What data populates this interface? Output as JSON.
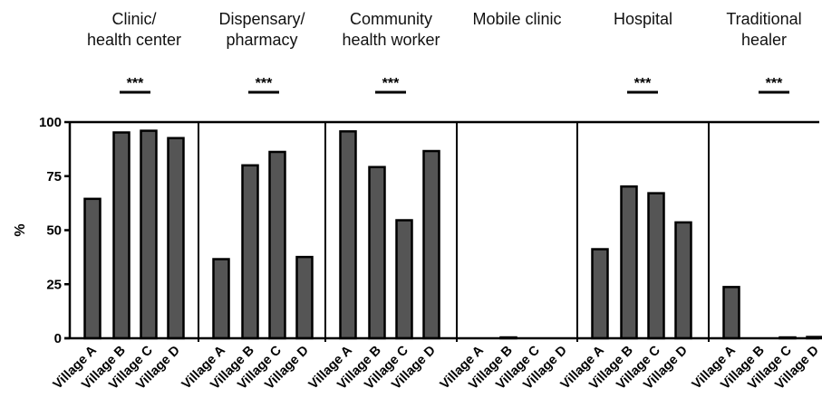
{
  "chart_data": {
    "type": "bar",
    "ylabel": "%",
    "ylim": [
      0,
      100
    ],
    "yticks": [
      "0",
      "25",
      "50",
      "75",
      "100"
    ],
    "categories": [
      "Village A",
      "Village B",
      "Village C",
      "Village D"
    ],
    "bar_color": "#555555",
    "significance_label": "***",
    "facets": [
      {
        "title": [
          "Clinic/",
          "health center"
        ],
        "values": [
          64.5,
          95.2,
          96,
          92.6
        ],
        "significant": true
      },
      {
        "title": [
          "Dispensary/",
          "pharmacy"
        ],
        "values": [
          36.6,
          80,
          86.2,
          37.6
        ],
        "significant": true
      },
      {
        "title": [
          "Community",
          "health worker"
        ],
        "values": [
          95.7,
          79.2,
          54.6,
          86.6
        ],
        "significant": true
      },
      {
        "title": [
          "Mobile clinic"
        ],
        "values": [
          0,
          0.4,
          0,
          0
        ],
        "significant": false
      },
      {
        "title": [
          "Hospital"
        ],
        "values": [
          41.2,
          70.2,
          67.1,
          53.6
        ],
        "significant": true
      },
      {
        "title": [
          "Traditional",
          "healer"
        ],
        "values": [
          23.7,
          0,
          0.4,
          0.6
        ],
        "significant": true
      }
    ]
  }
}
